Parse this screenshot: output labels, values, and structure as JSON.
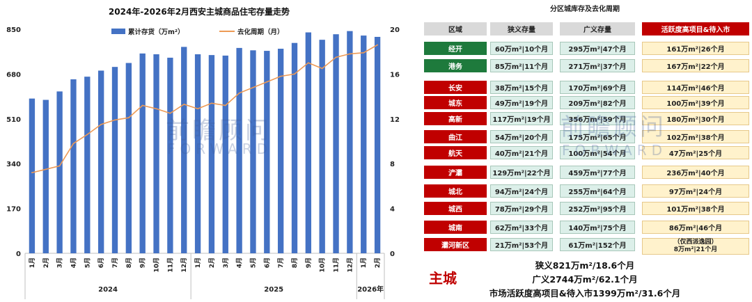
{
  "chart_data": {
    "type": "bar+line",
    "title": "2024年-2026年2月西安主城商品住宅存量走势",
    "categories": [
      "1月",
      "2月",
      "3月",
      "4月",
      "5月",
      "6月",
      "7月",
      "8月",
      "9月",
      "10月",
      "11月",
      "12月",
      "1月",
      "2月",
      "3月",
      "4月",
      "5月",
      "6月",
      "7月",
      "8月",
      "9月",
      "10月",
      "11月",
      "12月",
      "1月",
      "2月"
    ],
    "years": [
      {
        "label": "2024",
        "count": 12
      },
      {
        "label": "2025",
        "count": 12
      },
      {
        "label": "2026年",
        "count": 2
      }
    ],
    "series": [
      {
        "name": "累计存货（万m²）",
        "type": "bar",
        "axis": "left",
        "color": "#4472c4",
        "values": [
          587,
          582,
          614,
          660,
          670,
          693,
          707,
          722,
          758,
          755,
          742,
          783,
          755,
          752,
          750,
          779,
          770,
          768,
          776,
          798,
          838,
          810,
          831,
          843,
          826,
          821
        ]
      },
      {
        "name": "去化周期（月）",
        "type": "line",
        "axis": "right",
        "color": "#ed9a55",
        "values": [
          7.2,
          7.5,
          7.8,
          9.8,
          10.6,
          11.5,
          11.9,
          12.1,
          13.2,
          12.9,
          12.5,
          13.3,
          12.9,
          13.4,
          13.2,
          14.3,
          14.8,
          15.3,
          15.8,
          16.0,
          17.0,
          16.5,
          17.5,
          17.8,
          17.9,
          18.6
        ]
      }
    ],
    "ylim_left": [
      0,
      850
    ],
    "yticks_left": [
      0,
      170,
      340,
      510,
      680,
      850
    ],
    "ylim_right": [
      0,
      20
    ],
    "yticks_right": [
      0,
      4,
      8,
      12,
      16,
      20
    ],
    "legend": "top",
    "grid": false
  },
  "watermark": {
    "cn": "前瞻顾问",
    "en": "FORWARD"
  },
  "table": {
    "title": "分区城库存及去化周期",
    "headers": [
      "区域",
      "狭义存量",
      "广义存量",
      "活跃度高项目&待入市"
    ],
    "rows": [
      {
        "district": "经开",
        "color": "#1e7a3c",
        "narrow": "60万m²|10个月",
        "broad": "295万m²|47个月",
        "active": "161万m²|26个月"
      },
      {
        "district": "港务",
        "color": "#1e7a3c",
        "narrow": "85万m²|11个月",
        "broad": "271万m²|37个月",
        "active": "167万m²|22个月"
      },
      {
        "district": "长安",
        "color": "#c00000",
        "narrow": "38万m²|15个月",
        "broad": "170万m²|69个月",
        "active": "114万m²|46个月"
      },
      {
        "district": "城东",
        "color": "#c00000",
        "narrow": "49万m²|19个月",
        "broad": "209万m²|82个月",
        "active": "100万m²|39个月"
      },
      {
        "district": "高新",
        "color": "#c00000",
        "narrow": "117万m²|19个月",
        "broad": "356万m²|59个月",
        "active": "180万m²|30个月"
      },
      {
        "district": "曲江",
        "color": "#c00000",
        "narrow": "54万m²|20个月",
        "broad": "175万m²|65个月",
        "active": "102万m²|38个月"
      },
      {
        "district": "航天",
        "color": "#c00000",
        "narrow": "40万m²|21个月",
        "broad": "100万m²|54个月",
        "active": "47万m²|25个月"
      },
      {
        "district": "浐灞",
        "color": "#c00000",
        "narrow": "129万m²|22个月",
        "broad": "459万m²|77个月",
        "active": "236万m²|40个月"
      },
      {
        "district": "城北",
        "color": "#c00000",
        "narrow": "94万m²|24个月",
        "broad": "255万m²|64个月",
        "active": "97万m²|24个月"
      },
      {
        "district": "城西",
        "color": "#c00000",
        "narrow": "78万m²|29个月",
        "broad": "252万m²|95个月",
        "active": "101万m²|38个月"
      },
      {
        "district": "城南",
        "color": "#c00000",
        "narrow": "62万m²|33个月",
        "broad": "140万m²|75个月",
        "active": "86万m²|46个月"
      },
      {
        "district": "灞河新区",
        "color": "#c00000",
        "narrow": "21万m²|53个月",
        "broad": "61万m²|152个月",
        "active": "（仅西派逸园）\n8万m²|21个月"
      }
    ]
  },
  "summary": {
    "label": "主城",
    "lines": [
      "狭义821万m²/18.6个月",
      "广义2744万m²/62.1个月",
      "市场活跃度高项目&待入市1399万m²/31.6个月"
    ]
  }
}
